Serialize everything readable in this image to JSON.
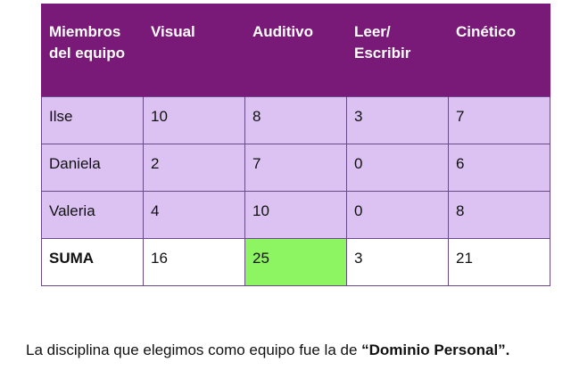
{
  "table": {
    "headers": [
      [
        "Miembros",
        "del equipo"
      ],
      [
        "Visual"
      ],
      [
        "Auditivo"
      ],
      [
        "Leer/",
        "Escribir"
      ],
      [
        "Cinético"
      ]
    ],
    "rows": [
      [
        "Ilse",
        "10",
        "8",
        "3",
        "7"
      ],
      [
        "Daniela",
        "2",
        "7",
        "0",
        "6"
      ],
      [
        "Valeria",
        "4",
        "10",
        "0",
        "8"
      ]
    ],
    "sum_row": [
      "SUMA",
      "16",
      "25",
      "3",
      "21"
    ]
  },
  "caption": {
    "text": "La disciplina que elegimos como equipo fue la de ",
    "emphasis": "“Dominio Personal”."
  },
  "colors": {
    "header_bg": "#7a1a78",
    "row_bg": "#dcc1f3",
    "highlight": "#8ef562"
  }
}
